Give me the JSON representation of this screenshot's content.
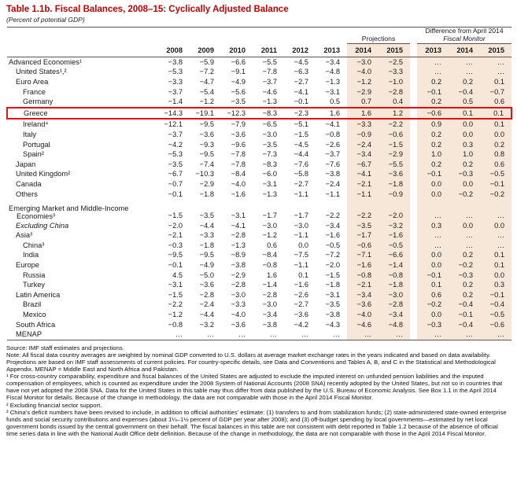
{
  "title": "Table 1.1b. Fiscal Balances, 2008–15: Cyclically Adjusted Balance",
  "subtitle": "(Percent of potential GDP)",
  "table": {
    "projections_label": "Projections",
    "difference_line1": "Difference from April 2014",
    "difference_line2": "Fiscal Monitor",
    "years": [
      "2008",
      "2009",
      "2010",
      "2011",
      "2012",
      "2013"
    ],
    "proj_years": [
      "2014",
      "2015"
    ],
    "diff_years": [
      "2013",
      "2014",
      "2015"
    ],
    "highlight_color": "#e01212",
    "shade_color": "#f6e7d8",
    "rows": [
      {
        "label": "Advanced Economies¹",
        "indent": 0,
        "values": [
          "−3.8",
          "−5.9",
          "−6.6",
          "−5.5",
          "−4.5",
          "−3.4",
          "−3.0",
          "−2.5",
          "…",
          "…",
          "…"
        ]
      },
      {
        "label": "United States¹,²",
        "indent": 1,
        "values": [
          "−5.3",
          "−7.2",
          "−9.1",
          "−7.8",
          "−6.3",
          "−4.8",
          "−4.0",
          "−3.3",
          "…",
          "…",
          "…"
        ]
      },
      {
        "label": "Euro Area",
        "indent": 1,
        "values": [
          "−3.3",
          "−4.7",
          "−4.9",
          "−3.7",
          "−2.7",
          "−1.3",
          "−1.2",
          "−1.0",
          "0.2",
          "0.2",
          "0.1"
        ]
      },
      {
        "label": "France",
        "indent": 2,
        "values": [
          "−3.7",
          "−5.4",
          "−5.6",
          "−4.6",
          "−4.1",
          "−3.1",
          "−2.9",
          "−2.8",
          "−0.1",
          "−0.4",
          "−0.7"
        ]
      },
      {
        "label": "Germany",
        "indent": 2,
        "values": [
          "−1.4",
          "−1.2",
          "−3.5",
          "−1.3",
          "−0.1",
          "0.5",
          "0.7",
          "0.4",
          "0.2",
          "0.5",
          "0.6"
        ]
      },
      {
        "label": "Greece",
        "indent": 2,
        "highlight": true,
        "values": [
          "−14.3",
          "−19.1",
          "−12.3",
          "−8.3",
          "−2.3",
          "1.6",
          "1.6",
          "1.2",
          "−0.6",
          "0.1",
          "0.1"
        ]
      },
      {
        "label": "Ireland⁴",
        "indent": 2,
        "values": [
          "−12.1",
          "−9.5",
          "−7.9",
          "−6.5",
          "−5.1",
          "−4.1",
          "−3.3",
          "−2.2",
          "0.9",
          "0.0",
          "0.1"
        ]
      },
      {
        "label": "Italy",
        "indent": 2,
        "values": [
          "−3.7",
          "−3.6",
          "−3.6",
          "−3.0",
          "−1.5",
          "−0.8",
          "−0.9",
          "−0.6",
          "0.2",
          "0.0",
          "0.0"
        ]
      },
      {
        "label": "Portugal",
        "indent": 2,
        "values": [
          "−4.2",
          "−9.3",
          "−9.6",
          "−3.5",
          "−4.5",
          "−2.6",
          "−2.4",
          "−1.5",
          "0.2",
          "0.3",
          "0.2"
        ]
      },
      {
        "label": "Spain²",
        "indent": 2,
        "values": [
          "−5.3",
          "−9.5",
          "−7.8",
          "−7.3",
          "−4.4",
          "−3.7",
          "−3.4",
          "−2.9",
          "1.0",
          "1.0",
          "0.8"
        ]
      },
      {
        "label": "Japan",
        "indent": 1,
        "values": [
          "−3.5",
          "−7.4",
          "−7.8",
          "−8.3",
          "−7.6",
          "−7.6",
          "−6.7",
          "−5.5",
          "0.2",
          "0.2",
          "0.6"
        ]
      },
      {
        "label": "United Kingdom²",
        "indent": 1,
        "values": [
          "−6.7",
          "−10.3",
          "−8.4",
          "−6.0",
          "−5.8",
          "−3.8",
          "−4.1",
          "−3.6",
          "−0.1",
          "−0.3",
          "−0.5"
        ]
      },
      {
        "label": "Canada",
        "indent": 1,
        "values": [
          "−0.7",
          "−2.9",
          "−4.0",
          "−3.1",
          "−2.7",
          "−2.4",
          "−2.1",
          "−1.8",
          "0.0",
          "0.0",
          "−0.1"
        ]
      },
      {
        "label": "Others",
        "indent": 1,
        "values": [
          "−0.1",
          "−1.8",
          "−1.6",
          "−1.3",
          "−1.1",
          "−1.1",
          "−1.1",
          "−0.9",
          "0.0",
          "−0.2",
          "−0.2"
        ]
      },
      {
        "spacer": true
      },
      {
        "label": "Emerging Market and Middle-Income Economies³",
        "indent": 0,
        "wrap": true,
        "values": [
          "−1.5",
          "−3.5",
          "−3.1",
          "−1.7",
          "−1.7",
          "−2.2",
          "−2.2",
          "−2.0",
          "…",
          "…",
          "…"
        ]
      },
      {
        "label": "Excluding China",
        "indent": 1,
        "italic": true,
        "values": [
          "−2.0",
          "−4.4",
          "−4.1",
          "−3.0",
          "−3.0",
          "−3.4",
          "−3.5",
          "−3.2",
          "0.3",
          "0.0",
          "0.0"
        ]
      },
      {
        "label": "Asia³",
        "indent": 1,
        "values": [
          "−2.1",
          "−3.3",
          "−2.8",
          "−1.2",
          "−1.1",
          "−1.6",
          "−1.7",
          "−1.6",
          "…",
          "…",
          "…"
        ]
      },
      {
        "label": "China³",
        "indent": 2,
        "values": [
          "−0.3",
          "−1.8",
          "−1.3",
          "0.6",
          "0.0",
          "−0.5",
          "−0.6",
          "−0.5",
          "…",
          "…",
          "…"
        ]
      },
      {
        "label": "India",
        "indent": 2,
        "values": [
          "−9.5",
          "−9.5",
          "−8.9",
          "−8.4",
          "−7.5",
          "−7.2",
          "−7.1",
          "−6.6",
          "0.0",
          "0.2",
          "0.1"
        ]
      },
      {
        "label": "Europe",
        "indent": 1,
        "values": [
          "−0.1",
          "−4.9",
          "−3.8",
          "−0.8",
          "−1.1",
          "−2.0",
          "−1.6",
          "−1.4",
          "0.0",
          "−0.2",
          "0.1"
        ]
      },
      {
        "label": "Russia",
        "indent": 2,
        "values": [
          "4.5",
          "−5.0",
          "−2.9",
          "1.6",
          "0.1",
          "−1.5",
          "−0.8",
          "−0.8",
          "−0.1",
          "−0.3",
          "0.0"
        ]
      },
      {
        "label": "Turkey",
        "indent": 2,
        "values": [
          "−3.1",
          "−3.6",
          "−2.8",
          "−1.4",
          "−1.6",
          "−1.8",
          "−2.1",
          "−1.8",
          "0.1",
          "0.2",
          "0.3"
        ]
      },
      {
        "label": "Latin America",
        "indent": 1,
        "values": [
          "−1.5",
          "−2.8",
          "−3.0",
          "−2.8",
          "−2.6",
          "−3.1",
          "−3.4",
          "−3.0",
          "0.6",
          "0.2",
          "−0.1"
        ]
      },
      {
        "label": "Brazil",
        "indent": 2,
        "values": [
          "−2.2",
          "−2.4",
          "−3.3",
          "−3.0",
          "−2.7",
          "−3.5",
          "−3.6",
          "−2.8",
          "−0.2",
          "−0.4",
          "−0.4"
        ]
      },
      {
        "label": "Mexico",
        "indent": 2,
        "values": [
          "−1.2",
          "−4.4",
          "−4.0",
          "−3.4",
          "−3.6",
          "−3.8",
          "−4.0",
          "−3.4",
          "0.0",
          "−0.1",
          "−0.5"
        ]
      },
      {
        "label": "South Africa",
        "indent": 1,
        "values": [
          "−0.8",
          "−3.2",
          "−3.6",
          "−3.8",
          "−4.2",
          "−4.3",
          "−4.6",
          "−4.8",
          "−0.3",
          "−0.4",
          "−0.6"
        ]
      },
      {
        "label": "MENAP",
        "indent": 1,
        "values": [
          "…",
          "…",
          "…",
          "…",
          "…",
          "…",
          "…",
          "…",
          "…",
          "…",
          "…"
        ]
      }
    ]
  },
  "footer": {
    "source": "Source: IMF staff estimates and projections.",
    "note": "Note: All fiscal data country averages are weighted by nominal GDP converted to U.S. dollars at average market exchange rates in the years indicated and based on data availability. Projections are based on IMF staff assessments of current policies. For country-specific details, see Data and Conventions and Tables A, B, and C in the Statistical and Methodological Appendix. MENAP = Middle East and North Africa and Pakistan.",
    "footnote1": "¹ For cross-country comparability, expenditure and fiscal balances of the United States are adjusted to exclude the imputed interest on unfunded pension liabilities and the imputed compensation of employees, which is counted as expenditure under the 2008 System of National Accounts (2008 SNA) recently adopted by the United States, but not so in countries that have not yet adopted the 2008 SNA. Data for the United States in this table may thus differ from data published by the U.S. Bureau of Economic Analysis. See Box 1.1 in the April 2014 Fiscal Monitor for details. Because of the change in methodology, the data are not comparable with those in the April 2014 Fiscal Monitor.",
    "footnote2": "² Excluding financial sector support.",
    "footnote3": "³ China's deficit numbers have been revised to include, in addition to official authorities' estimate: (1) transfers to and from stabilization funds; (2) state-administered state-owned enterprise funds and social security contributions and expenses (about 1¼–1½ percent of GDP per year after 2008); and (3) off-budget spending by local governments—estimated by net local government bonds issued by the central government on their behalf. The fiscal balances in this table are not consistent with debt reported in Table 1.2 because of the absence of official time series data in line with the National Audit Office debt definition. Because of the change in methodology, the data are not comparable with those in the April 2014 Fiscal Monitor."
  }
}
